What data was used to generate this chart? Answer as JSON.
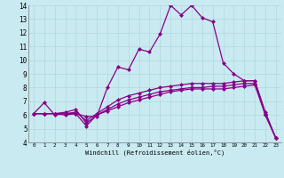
{
  "xlabel": "Windchill (Refroidissement éolien,°C)",
  "ylabel": "",
  "xlim": [
    -0.5,
    23.5
  ],
  "ylim": [
    4,
    14
  ],
  "xticks": [
    0,
    1,
    2,
    3,
    4,
    5,
    6,
    7,
    8,
    9,
    10,
    11,
    12,
    13,
    14,
    15,
    16,
    17,
    18,
    19,
    20,
    21,
    22,
    23
  ],
  "yticks": [
    4,
    5,
    6,
    7,
    8,
    9,
    10,
    11,
    12,
    13,
    14
  ],
  "bg_color": "#c8eaf0",
  "grid_color": "#b0d8dc",
  "line_color": "#880088",
  "lines": [
    [
      6.1,
      6.9,
      6.0,
      6.1,
      6.1,
      5.9,
      5.9,
      8.0,
      9.5,
      9.3,
      10.8,
      10.6,
      11.9,
      14.0,
      13.3,
      14.0,
      13.1,
      12.8,
      9.8,
      9.0,
      8.5,
      8.5,
      6.0,
      4.3
    ],
    [
      6.1,
      6.1,
      6.1,
      6.0,
      6.1,
      5.2,
      6.0,
      6.3,
      6.6,
      6.9,
      7.1,
      7.3,
      7.5,
      7.7,
      7.8,
      7.9,
      7.9,
      7.9,
      7.9,
      8.0,
      8.1,
      8.2,
      6.0,
      4.3
    ],
    [
      6.1,
      6.1,
      6.1,
      6.1,
      6.2,
      5.6,
      6.1,
      6.6,
      7.1,
      7.4,
      7.6,
      7.8,
      8.0,
      8.1,
      8.2,
      8.3,
      8.3,
      8.3,
      8.3,
      8.4,
      8.5,
      8.5,
      6.2,
      4.3
    ],
    [
      6.1,
      6.1,
      6.1,
      6.2,
      6.4,
      5.4,
      6.0,
      6.4,
      6.8,
      7.1,
      7.3,
      7.5,
      7.7,
      7.8,
      7.9,
      8.0,
      8.0,
      8.1,
      8.1,
      8.2,
      8.3,
      8.3,
      6.1,
      4.3
    ]
  ]
}
